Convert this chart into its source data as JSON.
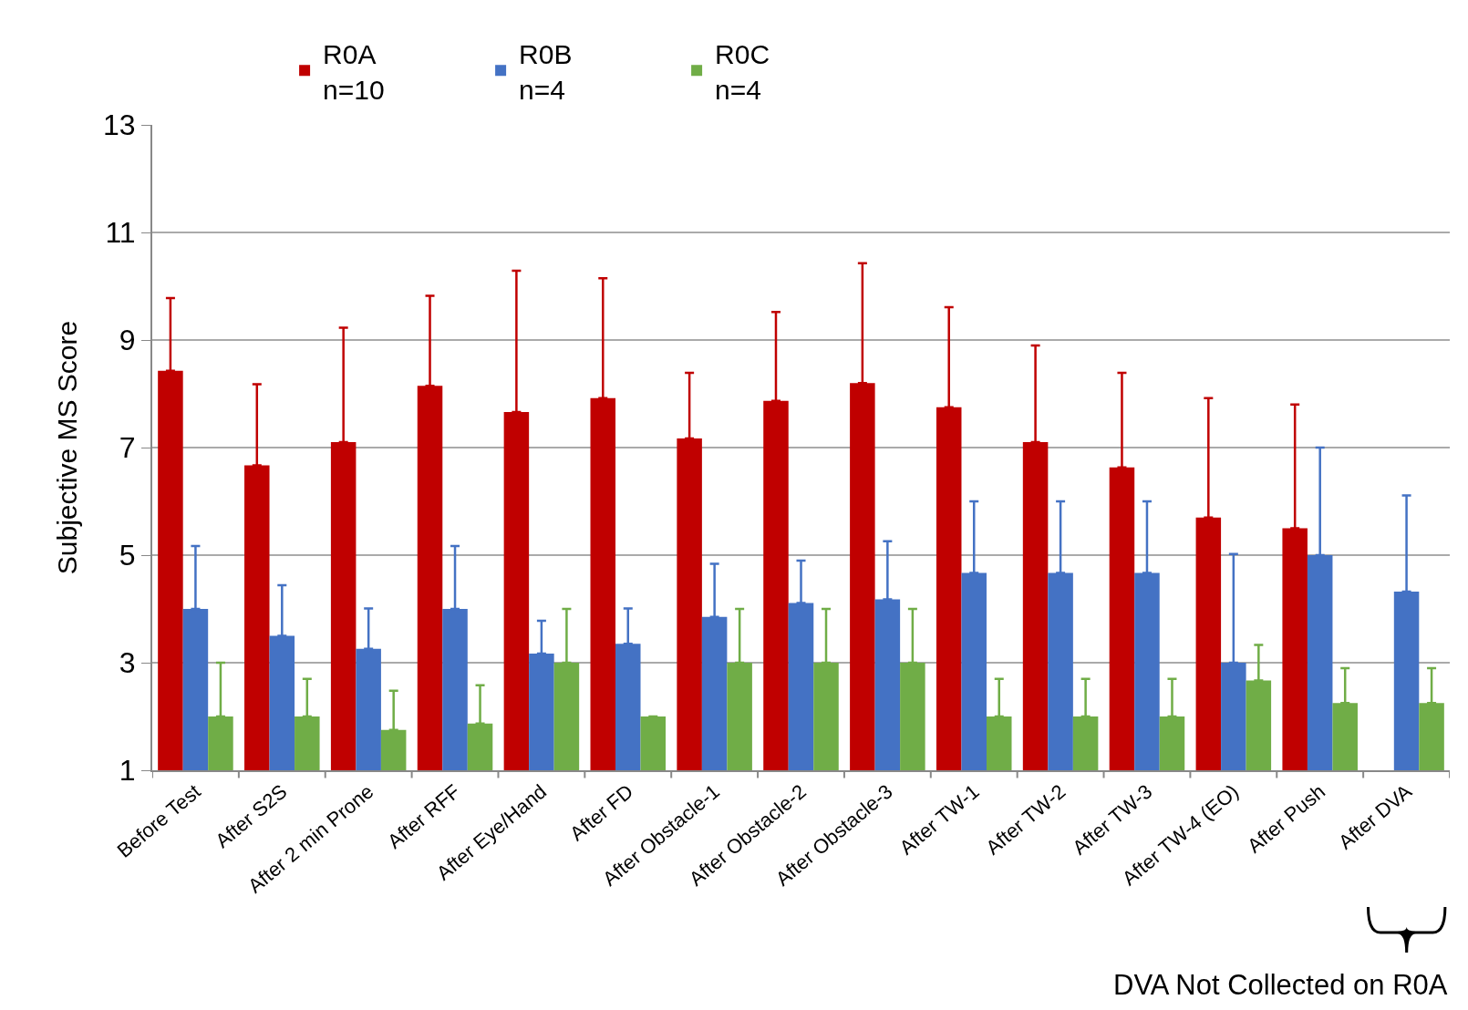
{
  "chart_data": {
    "type": "bar",
    "ylabel": "Subjective MS Score",
    "categories": [
      "Before Test",
      "After S2S",
      "After 2 min Prone",
      "After RFF",
      "After Eye/Hand",
      "After FD",
      "After Obstacle-1",
      "After Obstacle-2",
      "After Obstacle-3",
      "After TW-1",
      "After TW-2",
      "After TW-3",
      "After TW-4 (EO)",
      "After Push",
      "After DVA"
    ],
    "series": [
      {
        "name": "R0A\nn=10",
        "color": "#c00000",
        "values": [
          8.43,
          6.67,
          7.1,
          8.15,
          7.66,
          7.92,
          7.17,
          7.87,
          8.2,
          7.75,
          7.1,
          6.63,
          5.7,
          5.5,
          null
        ],
        "errors": [
          [
            8.43,
            9.78
          ],
          [
            6.67,
            8.18
          ],
          [
            7.1,
            9.23
          ],
          [
            8.15,
            9.82
          ],
          [
            7.66,
            10.29
          ],
          [
            7.92,
            10.15
          ],
          [
            7.17,
            8.39
          ],
          [
            7.87,
            9.52
          ],
          [
            8.2,
            10.43
          ],
          [
            7.75,
            9.61
          ],
          [
            7.1,
            8.9
          ],
          [
            6.63,
            8.39
          ],
          [
            5.7,
            7.92
          ],
          [
            5.5,
            7.8
          ],
          null
        ]
      },
      {
        "name": "R0B\nn=4",
        "color": "#4472c4",
        "values": [
          4.0,
          3.5,
          3.26,
          4.0,
          3.17,
          3.35,
          3.85,
          4.11,
          4.18,
          4.67,
          4.67,
          4.67,
          3.0,
          5.0,
          4.32
        ],
        "errors": [
          [
            4.0,
            5.17
          ],
          [
            3.5,
            4.44
          ],
          [
            3.26,
            4.01
          ],
          [
            4.0,
            5.17
          ],
          [
            3.17,
            3.78
          ],
          [
            3.35,
            4.01
          ],
          [
            3.85,
            4.84
          ],
          [
            4.11,
            4.9
          ],
          [
            4.18,
            5.26
          ],
          [
            4.67,
            6.0
          ],
          [
            4.67,
            6.0
          ],
          [
            4.67,
            6.0
          ],
          [
            3.0,
            5.02
          ],
          [
            5.0,
            7.0
          ],
          [
            4.32,
            6.11
          ]
        ]
      },
      {
        "name": "R0C\nn=4",
        "color": "#70ad47",
        "values": [
          2.0,
          2.0,
          1.75,
          1.87,
          3.0,
          2.0,
          3.0,
          3.0,
          3.0,
          2.0,
          2.0,
          2.0,
          2.67,
          2.25,
          2.25
        ],
        "errors": [
          [
            2.0,
            3.0
          ],
          [
            2.0,
            2.7
          ],
          [
            1.75,
            2.48
          ],
          [
            1.87,
            2.58
          ],
          [
            3.0,
            4.0
          ],
          null,
          [
            3.0,
            4.0
          ],
          [
            3.0,
            4.0
          ],
          [
            3.0,
            4.0
          ],
          [
            2.0,
            2.7
          ],
          [
            2.0,
            2.7
          ],
          [
            2.0,
            2.7
          ],
          [
            2.67,
            3.33
          ],
          [
            2.25,
            2.9
          ],
          [
            2.25,
            2.9
          ]
        ]
      }
    ],
    "ylim": [
      1,
      13
    ],
    "yticks": [
      1,
      3,
      5,
      7,
      9,
      11,
      13
    ],
    "grid": "y",
    "legend": "top",
    "annotations": [
      "DVA Not Collected on R0A"
    ]
  }
}
